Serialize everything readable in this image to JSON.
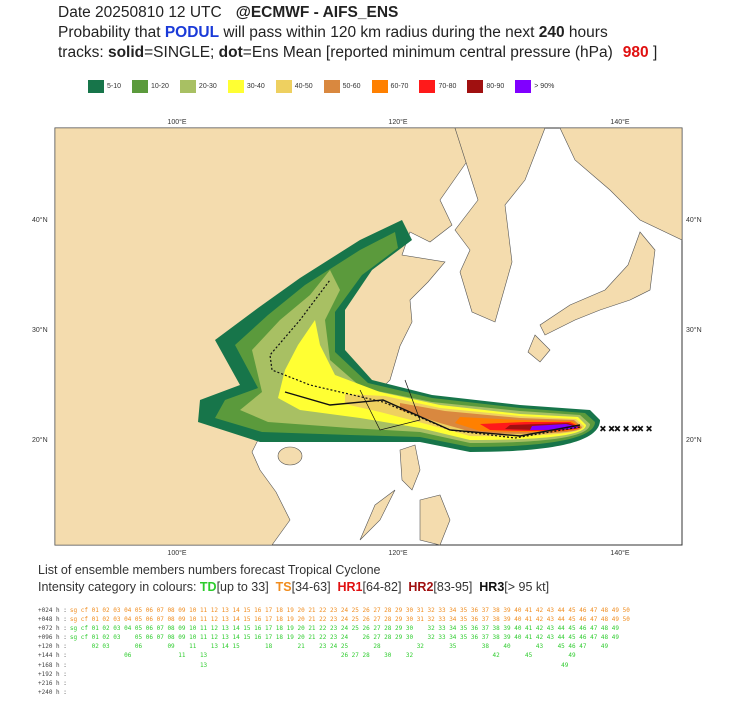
{
  "header": {
    "line1": [
      "Date 20250810 12 UTC",
      "@ECMWF - AIFS_ENS"
    ],
    "line2": [
      "Probability that ",
      "PODUL",
      " will pass within 120 km radius during the next ",
      "240",
      " hours"
    ],
    "line3": [
      "tracks: ",
      "solid",
      "=SINGLE; ",
      "dot",
      "=Ens Mean [reported minimum central pressure (hPa)",
      "980",
      " ]"
    ]
  },
  "legend": [
    {
      "label": "5-10",
      "color": "#17754a"
    },
    {
      "label": "10-20",
      "color": "#5b9a3c"
    },
    {
      "label": "20-30",
      "color": "#a8c063"
    },
    {
      "label": "30-40",
      "color": "#ffff33"
    },
    {
      "label": "40-50",
      "color": "#eed060"
    },
    {
      "label": "50-60",
      "color": "#d9883f"
    },
    {
      "label": "60-70",
      "color": "#ff8000"
    },
    {
      "label": "70-80",
      "color": "#ff1a1a"
    },
    {
      "label": "80-90",
      "color": "#a01010"
    },
    {
      "label": "> 90%",
      "color": "#8000ff"
    }
  ],
  "map": {
    "lon_labels": [
      "100°E",
      "120°E",
      "140°E"
    ],
    "lat_labels": [
      "40°N",
      "30°N",
      "20°N"
    ]
  },
  "footer": {
    "title": "List of ensemble members numbers forecast Tropical Cyclone",
    "intensity": [
      {
        "text": "Intensity category in colours: ",
        "color": "#333333"
      },
      {
        "text": "TD",
        "color": "#2ecc2e"
      },
      {
        "text": "[up to 33]  ",
        "color": "#333333"
      },
      {
        "text": "TS",
        "color": "#f08c1e"
      },
      {
        "text": "[34-63]  ",
        "color": "#333333"
      },
      {
        "text": "HR1",
        "color": "#e01010"
      },
      {
        "text": "[64-82]  ",
        "color": "#333333"
      },
      {
        "text": "HR2",
        "color": "#a01010"
      },
      {
        "text": "[83-95]  ",
        "color": "#333333"
      },
      {
        "text": "HR3",
        "color": "#111111"
      },
      {
        "text": "[> 95 kt]",
        "color": "#333333"
      }
    ]
  },
  "members_table": [
    {
      "label": "+024 h :",
      "members": "sg cf 01 02 03 04 05 06 07 08 09 10 11 12 13 14 15 16 17 18 19 20 21 22 23 24 25 26 27 28 29 30 31 32 33 34 35 36 37 38 39 40 41 42 43 44 45 46 47 48 49 50",
      "color": "#f08c1e"
    },
    {
      "label": "+048 h :",
      "members": "sg cf 01 02 03 04 05 06 07 08 09 10 11 12 13 14 15 16 17 18 19 20 21 22 23 24 25 26 27 28 29 30 31 32 33 34 35 36 37 38 39 40 41 42 43 44 45 46 47 48 49 50",
      "color": "#f08c1e"
    },
    {
      "label": "+072 h :",
      "members": "sg cf 01 02 03 04 05 06 07 08 09 10 11 12 13 14 15 16 17 18 19 20 21 22 23 24 25 26 27 28 29 30    32 33 34 35 36 37 38 39 40 41 42 43 44 45 46 47 48 49",
      "color": "#2ecc2e"
    },
    {
      "label": "+096 h :",
      "members": "sg cf 01 02 03    05 06 07 08 09 10 11 12 13 14 15 16 17 18 19 20 21 22 23 24    26 27 28 29 30    32 33 34 35 36 37 38 39 40 41 42 43 44 45 46 47 48 49",
      "color": "#2ecc2e"
    },
    {
      "label": "+120 h :",
      "members": "      02 03       06       09    11    13 14 15       18       21    23 24 25       28          32       35       38    40       43    45 46 47    49",
      "color": "#2ecc2e"
    },
    {
      "label": "+144 h :",
      "members": "               06             11    13                                     26 27 28    30    32                      42       45          49",
      "color": "#2ecc2e"
    },
    {
      "label": "+168 h :",
      "members": "                                    13                                                                                                  49",
      "color": "#2ecc2e"
    },
    {
      "label": "+192 h :"
    },
    {
      "label": "+216 h :"
    },
    {
      "label": "+240 h :"
    }
  ]
}
